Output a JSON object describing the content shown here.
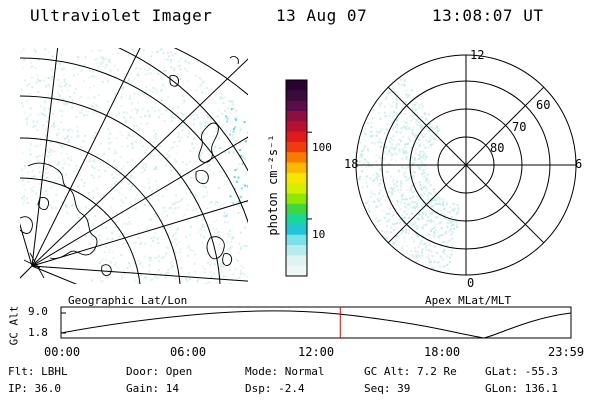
{
  "header": {
    "instrument": "Ultraviolet Imager",
    "date": "13 Aug 07",
    "time": "13:08:07 UT"
  },
  "colorbar": {
    "unit_label": "photon cm⁻²s⁻¹",
    "ticks": [
      {
        "label": "100",
        "value": 100
      },
      {
        "label": "10",
        "value": 10
      }
    ],
    "colors": [
      "#2b0033",
      "#3a0a3a",
      "#5a0d4a",
      "#8a1040",
      "#b81030",
      "#de1a1a",
      "#f03a10",
      "#f77c00",
      "#fbb800",
      "#f7e400",
      "#d2f000",
      "#8fe800",
      "#3fd63f",
      "#19d79c",
      "#22c4d8",
      "#7ce0e8",
      "#b6ecee",
      "#dff4f2",
      "#eef8f4"
    ]
  },
  "left_map": {
    "projection_label": "Geographic Lat/Lon"
  },
  "right_map": {
    "projection_label": "Apex MLat/MLT",
    "mlt_labels": {
      "top": "12",
      "left": "18",
      "right": "6",
      "bottom": "0"
    },
    "lat_labels": [
      "60",
      "70",
      "80"
    ]
  },
  "altitude_plot": {
    "ylabel": "GC Alt",
    "yticks": [
      "9.0",
      "1.8"
    ],
    "xticks": [
      "00:00",
      "06:00",
      "12:00",
      "18:00",
      "23:59"
    ],
    "current_time_marker": "13:08",
    "marker_color": "#e00000"
  },
  "status": {
    "row1": [
      {
        "key": "Flt:",
        "value": "LBHL"
      },
      {
        "key": "Door:",
        "value": "Open"
      },
      {
        "key": "Mode:",
        "value": "Normal"
      },
      {
        "key": "GC Alt:",
        "value": "7.2 Re"
      },
      {
        "key": "GLat:",
        "value": "-55.3"
      }
    ],
    "row2": [
      {
        "key": "IP:",
        "value": "36.0"
      },
      {
        "key": "Gain:",
        "value": "14"
      },
      {
        "key": "Dsp:",
        "value": "-2.4"
      },
      {
        "key": "Seq:",
        "value": "39"
      },
      {
        "key": "GLon:",
        "value": "136.1"
      }
    ]
  }
}
